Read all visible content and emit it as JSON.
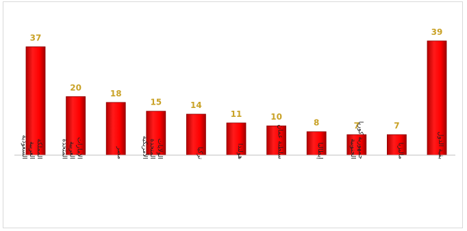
{
  "chart_data": {
    "type": "bar",
    "categories": [
      "المملكة العربية السعودية",
      "الإمارات العربية المتحدة",
      "مصر",
      "الولايات المتحدة الأمريكية",
      "تركيا",
      "هولندا",
      "سلطنة عمان",
      "إيطاليا",
      "جمهورية كوريا الجنوبية",
      "ماليزيا",
      "بقية الدول"
    ],
    "values": [
      37,
      20,
      18,
      15,
      14,
      11,
      10,
      8,
      7,
      7,
      39
    ],
    "ylim": [
      0,
      42
    ],
    "colors": {
      "bar": "#ff0000",
      "bar_edge": "#8b0000",
      "value_label": "#c9a227"
    },
    "grid": false,
    "legend": "none"
  }
}
